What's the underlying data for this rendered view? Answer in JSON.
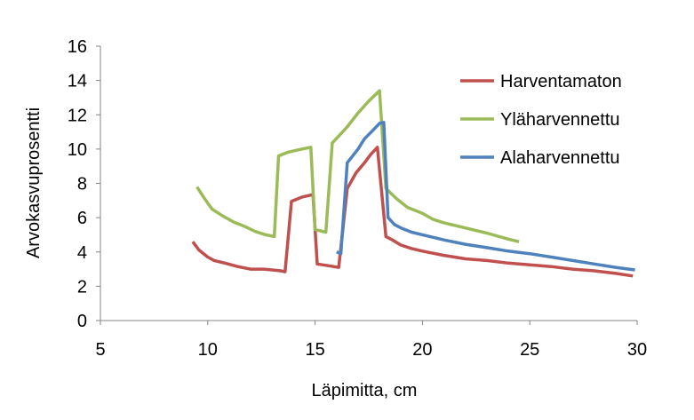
{
  "chart_data": {
    "type": "line",
    "title": "",
    "xlabel": "Läpimitta, cm",
    "ylabel": "Arvokasvuprosentti",
    "xlim": [
      5,
      30
    ],
    "ylim": [
      0,
      16
    ],
    "x_ticks": [
      5,
      10,
      15,
      20,
      25,
      30
    ],
    "y_ticks": [
      0,
      2,
      4,
      6,
      8,
      10,
      12,
      14,
      16
    ],
    "grid": false,
    "legend_position": "right",
    "series": [
      {
        "name": "Harventamaton",
        "color": "#C0504D",
        "points": [
          [
            9.3,
            4.6
          ],
          [
            9.6,
            4.1
          ],
          [
            10.0,
            3.7
          ],
          [
            10.3,
            3.5
          ],
          [
            10.8,
            3.35
          ],
          [
            11.4,
            3.15
          ],
          [
            12.0,
            3.0
          ],
          [
            12.6,
            3.0
          ],
          [
            13.0,
            2.95
          ],
          [
            13.4,
            2.9
          ],
          [
            13.6,
            2.85
          ],
          [
            13.9,
            6.95
          ],
          [
            14.4,
            7.2
          ],
          [
            14.9,
            7.35
          ],
          [
            15.1,
            3.3
          ],
          [
            15.6,
            3.2
          ],
          [
            16.1,
            3.1
          ],
          [
            16.5,
            7.7
          ],
          [
            16.9,
            8.6
          ],
          [
            17.3,
            9.2
          ],
          [
            17.6,
            9.7
          ],
          [
            17.9,
            10.1
          ],
          [
            18.3,
            4.9
          ],
          [
            18.6,
            4.7
          ],
          [
            19.0,
            4.4
          ],
          [
            19.5,
            4.2
          ],
          [
            20.0,
            4.05
          ],
          [
            21.0,
            3.8
          ],
          [
            22.0,
            3.6
          ],
          [
            23.0,
            3.5
          ],
          [
            24.0,
            3.35
          ],
          [
            25.0,
            3.25
          ],
          [
            26.0,
            3.15
          ],
          [
            27.0,
            3.0
          ],
          [
            28.0,
            2.9
          ],
          [
            29.0,
            2.75
          ],
          [
            29.8,
            2.6
          ]
        ]
      },
      {
        "name": "Yläharvennettu",
        "color": "#9BBB59",
        "points": [
          [
            9.5,
            7.8
          ],
          [
            9.8,
            7.2
          ],
          [
            10.2,
            6.5
          ],
          [
            10.7,
            6.1
          ],
          [
            11.2,
            5.75
          ],
          [
            11.7,
            5.5
          ],
          [
            12.2,
            5.2
          ],
          [
            12.7,
            5.0
          ],
          [
            13.1,
            4.9
          ],
          [
            13.3,
            9.6
          ],
          [
            13.7,
            9.8
          ],
          [
            14.2,
            9.95
          ],
          [
            14.8,
            10.1
          ],
          [
            15.0,
            5.3
          ],
          [
            15.5,
            5.15
          ],
          [
            15.8,
            10.35
          ],
          [
            16.5,
            11.3
          ],
          [
            17.0,
            12.1
          ],
          [
            17.5,
            12.8
          ],
          [
            18.0,
            13.4
          ],
          [
            18.3,
            7.7
          ],
          [
            18.8,
            7.1
          ],
          [
            19.3,
            6.6
          ],
          [
            20.0,
            6.25
          ],
          [
            20.5,
            5.9
          ],
          [
            21.0,
            5.7
          ],
          [
            22.0,
            5.4
          ],
          [
            23.0,
            5.1
          ],
          [
            24.0,
            4.75
          ],
          [
            24.5,
            4.6
          ]
        ]
      },
      {
        "name": "Alaharvennettu",
        "color": "#4F81BD",
        "points": [
          [
            16.0,
            4.0
          ],
          [
            16.2,
            3.9
          ],
          [
            16.5,
            9.2
          ],
          [
            17.0,
            10.0
          ],
          [
            17.3,
            10.6
          ],
          [
            17.7,
            11.1
          ],
          [
            18.0,
            11.5
          ],
          [
            18.2,
            11.55
          ],
          [
            18.4,
            6.0
          ],
          [
            18.7,
            5.6
          ],
          [
            19.0,
            5.4
          ],
          [
            19.5,
            5.15
          ],
          [
            20.0,
            5.0
          ],
          [
            21.0,
            4.7
          ],
          [
            22.0,
            4.45
          ],
          [
            23.0,
            4.25
          ],
          [
            24.0,
            4.05
          ],
          [
            25.0,
            3.9
          ],
          [
            26.0,
            3.7
          ],
          [
            27.0,
            3.5
          ],
          [
            28.0,
            3.3
          ],
          [
            29.0,
            3.1
          ],
          [
            29.9,
            2.95
          ]
        ]
      }
    ]
  }
}
